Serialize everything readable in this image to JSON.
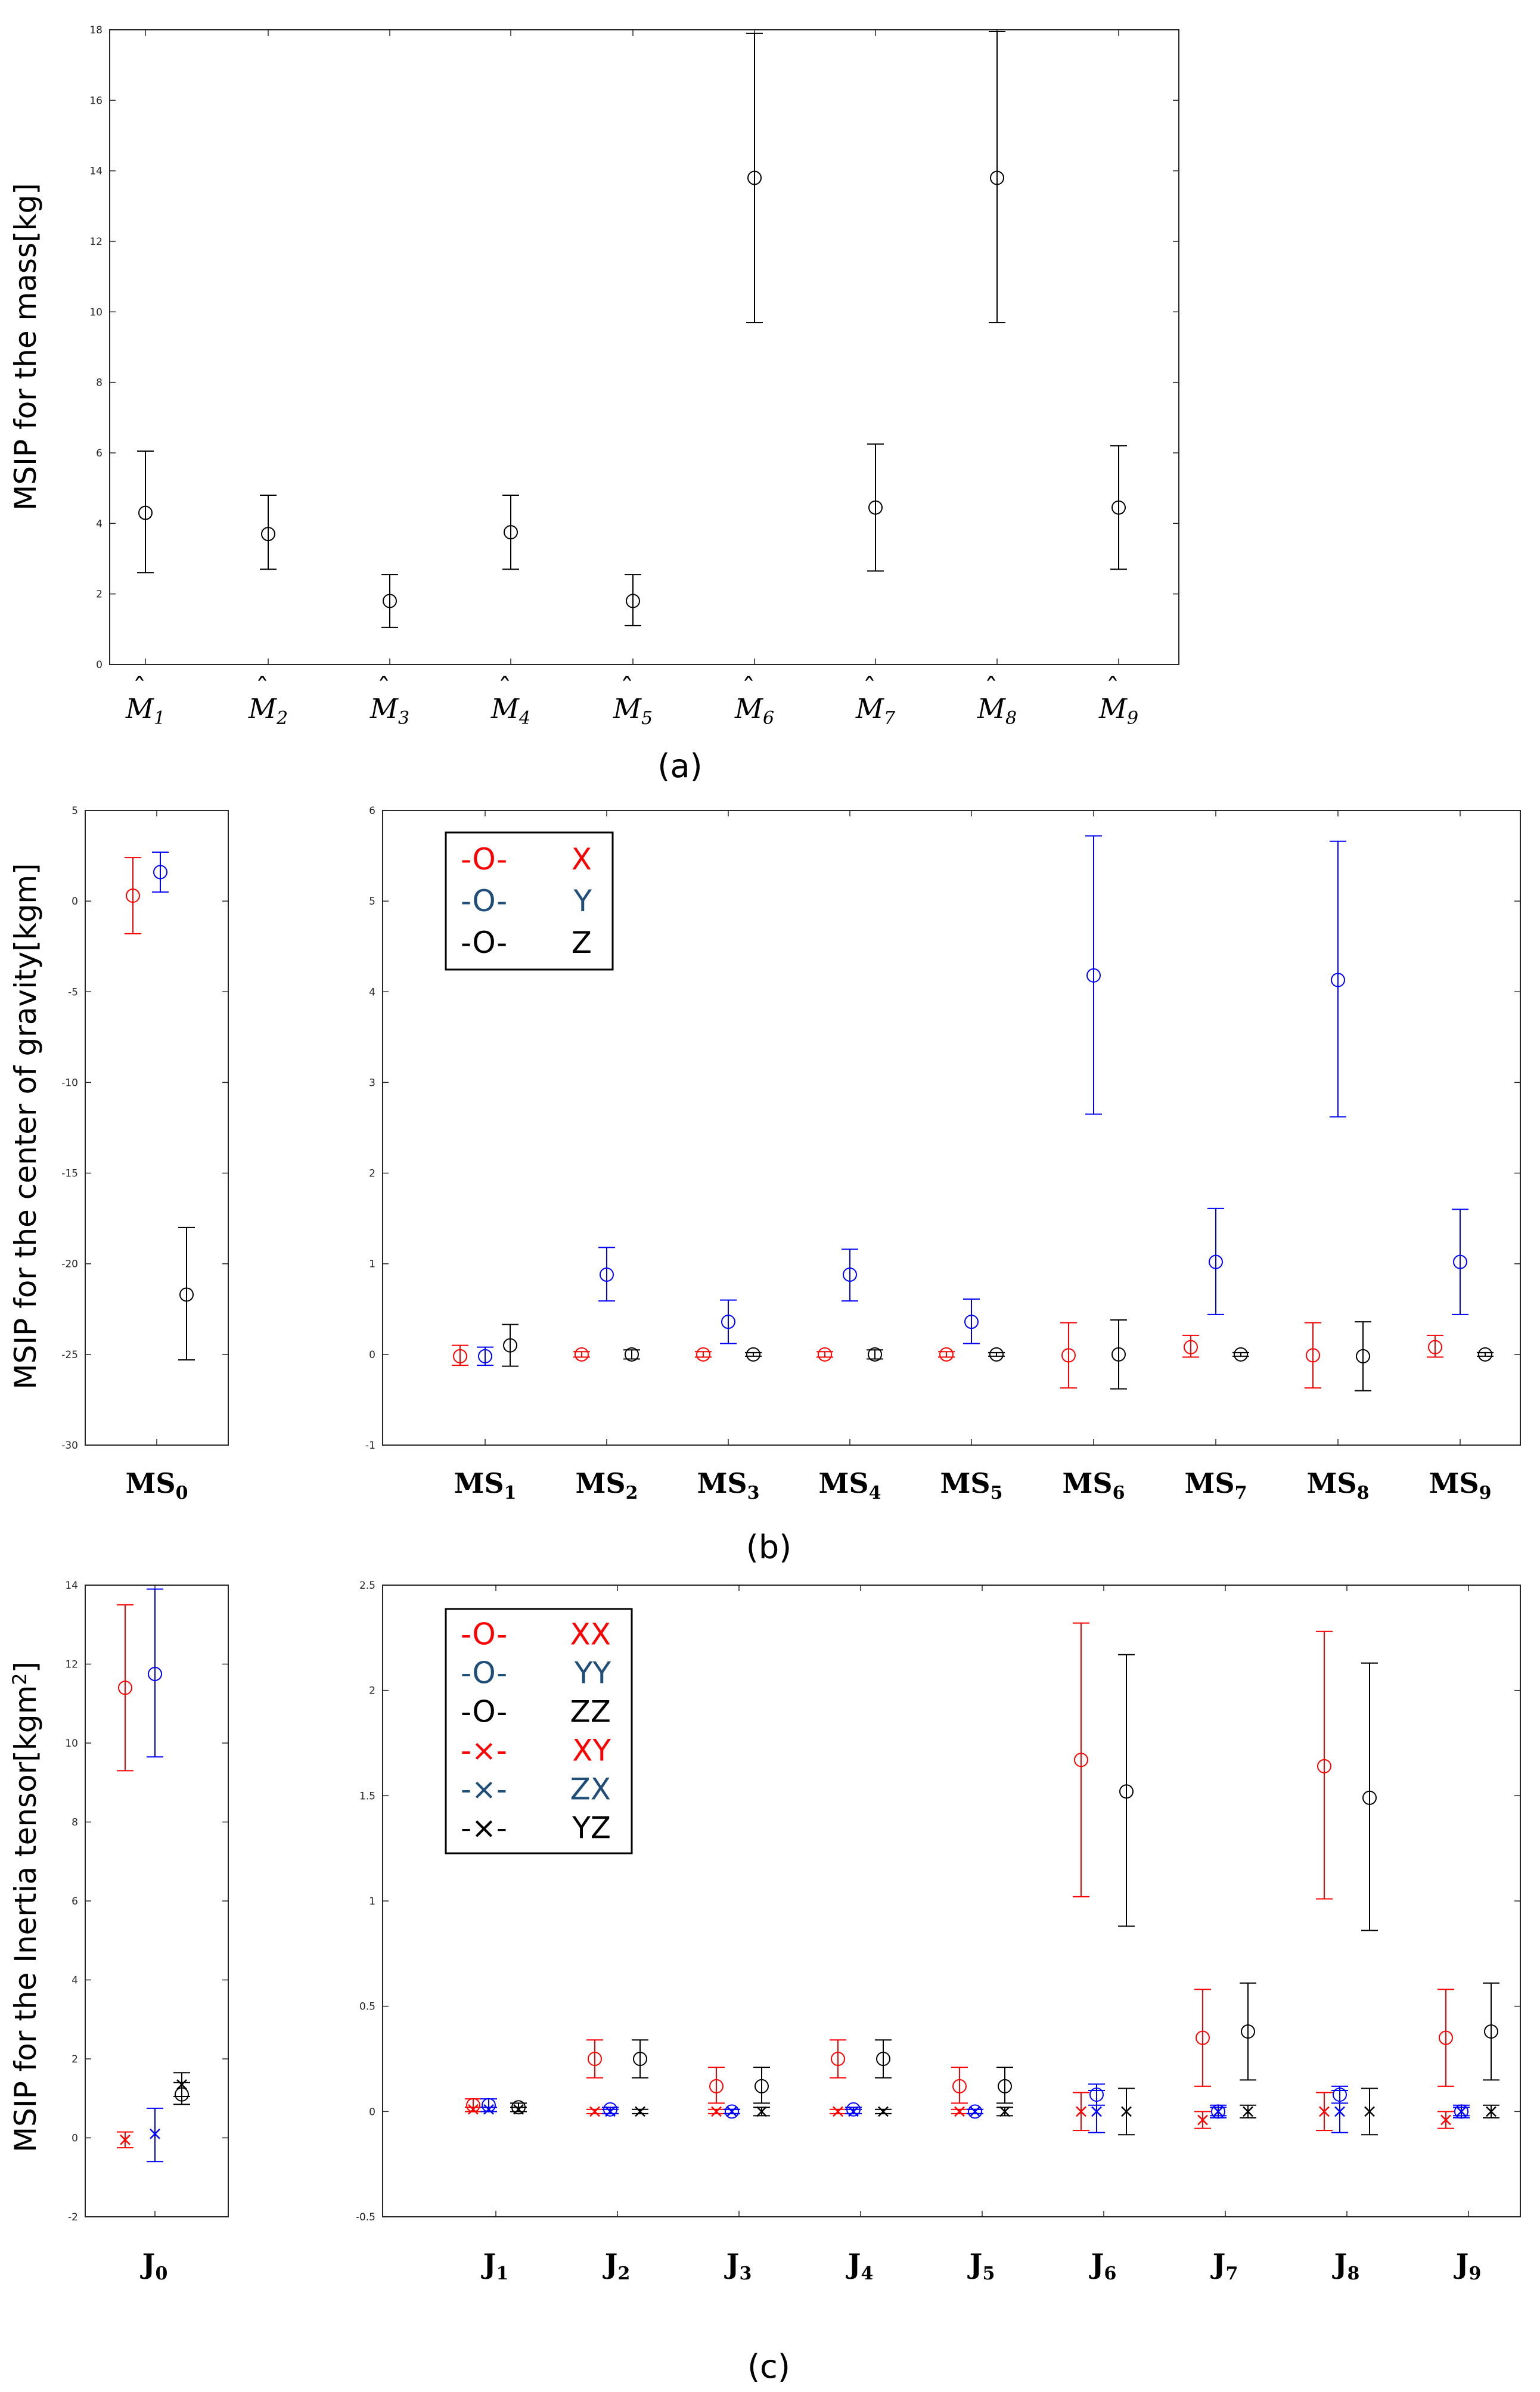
{
  "colors": {
    "X": "#ff0000",
    "Y": "#0000ff",
    "Z": "#000000",
    "legend_Y": "#1f4e79"
  },
  "chart_data": [
    {
      "id": "mass",
      "type": "errorbar",
      "caption": "(a)",
      "ylabel": "MSIP for the mass[kg]",
      "ylim": [
        0,
        18
      ],
      "yticks": [
        "0",
        "2",
        "4",
        "6",
        "8",
        "10",
        "12",
        "14",
        "16",
        "18"
      ],
      "categories": [
        "M",
        "M",
        "M",
        "M",
        "M",
        "M",
        "M",
        "M",
        "M"
      ],
      "category_subscripts": [
        "1",
        "2",
        "3",
        "4",
        "5",
        "6",
        "7",
        "8",
        "9"
      ],
      "series": [
        {
          "name": "mass",
          "marker": "circle",
          "color": "#000000",
          "values": [
            4.3,
            3.7,
            1.8,
            3.75,
            1.8,
            13.8,
            4.45,
            13.8,
            4.45
          ],
          "lower": [
            2.6,
            2.7,
            1.05,
            2.7,
            1.1,
            9.7,
            2.65,
            9.7,
            2.7
          ],
          "upper": [
            6.05,
            4.8,
            2.55,
            4.8,
            2.55,
            17.9,
            6.25,
            17.95,
            6.2
          ]
        }
      ]
    },
    {
      "id": "ms0",
      "type": "errorbar",
      "caption": "",
      "ylabel": "MSIP for the center of gravity[kgm]",
      "ylim": [
        -30,
        5
      ],
      "yticks": [
        "-30",
        "-25",
        "-20",
        "-15",
        "-10",
        "-5",
        "0",
        "5"
      ],
      "categories": [
        "MS"
      ],
      "category_subscripts": [
        "0"
      ],
      "series": [
        {
          "name": "X",
          "marker": "circle",
          "color": "#ff0000",
          "values": [
            0.3
          ],
          "lower": [
            -1.8
          ],
          "upper": [
            2.4
          ]
        },
        {
          "name": "Y",
          "marker": "circle",
          "color": "#0000ff",
          "values": [
            1.6
          ],
          "lower": [
            0.5
          ],
          "upper": [
            2.7
          ]
        },
        {
          "name": "Z",
          "marker": "circle",
          "color": "#000000",
          "values": [
            -21.7
          ],
          "lower": [
            -25.3
          ],
          "upper": [
            -18.0
          ]
        }
      ]
    },
    {
      "id": "ms19",
      "type": "errorbar",
      "caption": "(b)",
      "ylim": [
        -1,
        6
      ],
      "yticks": [
        "-1",
        "0",
        "1",
        "2",
        "3",
        "4",
        "5",
        "6"
      ],
      "categories": [
        "MS",
        "MS",
        "MS",
        "MS",
        "MS",
        "MS",
        "MS",
        "MS",
        "MS"
      ],
      "category_subscripts": [
        "1",
        "2",
        "3",
        "4",
        "5",
        "6",
        "7",
        "8",
        "9"
      ],
      "legend": {
        "position": "top-left",
        "items": [
          "X",
          "Y",
          "Z"
        ],
        "marker_symbols": [
          "-O-",
          "-O-",
          "-O-"
        ]
      },
      "series": [
        {
          "name": "X",
          "marker": "circle",
          "color": "#ff0000",
          "values": [
            -0.02,
            0,
            0,
            0,
            0,
            -0.01,
            0.08,
            -0.01,
            0.08
          ],
          "lower": [
            -0.12,
            -0.03,
            -0.03,
            -0.03,
            -0.03,
            -0.37,
            -0.03,
            -0.37,
            -0.03
          ],
          "upper": [
            0.1,
            0.03,
            0.03,
            0.03,
            0.03,
            0.35,
            0.21,
            0.35,
            0.21
          ]
        },
        {
          "name": "Y",
          "marker": "circle",
          "color": "#0000ff",
          "values": [
            -0.02,
            0.88,
            0.36,
            0.88,
            0.36,
            4.18,
            1.02,
            4.13,
            1.02
          ],
          "lower": [
            -0.12,
            0.59,
            0.12,
            0.59,
            0.12,
            2.65,
            0.44,
            2.62,
            0.44
          ],
          "upper": [
            0.08,
            1.18,
            0.6,
            1.16,
            0.61,
            5.72,
            1.61,
            5.66,
            1.6
          ]
        },
        {
          "name": "Z",
          "marker": "circle",
          "color": "#000000",
          "values": [
            0.1,
            0,
            0,
            0,
            0,
            0,
            0,
            -0.02,
            0
          ],
          "lower": [
            -0.13,
            -0.05,
            -0.02,
            -0.05,
            -0.02,
            -0.38,
            -0.02,
            -0.4,
            -0.02
          ],
          "upper": [
            0.33,
            0.05,
            0.02,
            0.05,
            0.02,
            0.38,
            0.02,
            0.36,
            0.02
          ]
        }
      ]
    },
    {
      "id": "j0",
      "type": "errorbar",
      "caption": "",
      "ylabel": "MSIP for the Inertia tensor[kgm",
      "ylabel_sup": "2",
      "ylabel_end": "]",
      "ylim": [
        -2,
        14
      ],
      "yticks": [
        "-2",
        "0",
        "2",
        "4",
        "6",
        "8",
        "10",
        "12",
        "14"
      ],
      "categories": [
        "J"
      ],
      "category_subscripts": [
        "0"
      ],
      "series": [
        {
          "name": "XX",
          "marker": "circle",
          "color": "#ff0000",
          "values": [
            11.4
          ],
          "lower": [
            9.3
          ],
          "upper": [
            13.5
          ]
        },
        {
          "name": "YY",
          "marker": "circle",
          "color": "#0000ff",
          "values": [
            11.75
          ],
          "lower": [
            9.65
          ],
          "upper": [
            13.9
          ]
        },
        {
          "name": "ZZ",
          "marker": "circle",
          "color": "#000000",
          "values": [
            1.1
          ],
          "lower": [
            0.85
          ],
          "upper": [
            1.4
          ]
        },
        {
          "name": "XY",
          "marker": "cross",
          "color": "#ff0000",
          "values": [
            -0.05
          ],
          "lower": [
            -0.25
          ],
          "upper": [
            0.15
          ]
        },
        {
          "name": "ZX",
          "marker": "cross",
          "color": "#0000ff",
          "values": [
            0.1
          ],
          "lower": [
            -0.6
          ],
          "upper": [
            0.75
          ]
        },
        {
          "name": "YZ",
          "marker": "cross",
          "color": "#000000",
          "values": [
            1.35
          ],
          "lower": [
            1.05
          ],
          "upper": [
            1.65
          ]
        }
      ]
    },
    {
      "id": "j19",
      "type": "errorbar",
      "caption": "(c)",
      "ylim": [
        -0.5,
        2.5
      ],
      "yticks": [
        "-0.5",
        "0",
        "0.5",
        "1",
        "1.5",
        "2",
        "2.5"
      ],
      "categories": [
        "J",
        "J",
        "J",
        "J",
        "J",
        "J",
        "J",
        "J",
        "J"
      ],
      "category_subscripts": [
        "1",
        "2",
        "3",
        "4",
        "5",
        "6",
        "7",
        "8",
        "9"
      ],
      "legend": {
        "position": "top-left",
        "items": [
          "XX",
          "YY",
          "ZZ",
          "XY",
          "ZX",
          "YZ"
        ],
        "marker_symbols": [
          "-O-",
          "-O-",
          "-O-",
          "-×-",
          "-×-",
          "-×-"
        ]
      },
      "series": [
        {
          "name": "XX",
          "marker": "circle",
          "color": "#ff0000",
          "values": [
            0.03,
            0.25,
            0.12,
            0.25,
            0.12,
            1.67,
            0.35,
            1.64,
            0.35
          ],
          "lower": [
            0,
            0.16,
            0.04,
            0.16,
            0.04,
            1.02,
            0.12,
            1.01,
            0.12
          ],
          "upper": [
            0.06,
            0.34,
            0.21,
            0.34,
            0.21,
            2.32,
            0.58,
            2.28,
            0.58
          ]
        },
        {
          "name": "YY",
          "marker": "circle",
          "color": "#0000ff",
          "values": [
            0.03,
            0.01,
            0,
            0.01,
            0,
            0.08,
            0,
            0.08,
            0
          ],
          "lower": [
            0,
            -0.01,
            -0.01,
            -0.01,
            -0.01,
            0.03,
            -0.02,
            0.04,
            -0.02
          ],
          "upper": [
            0.06,
            0.02,
            0.01,
            0.02,
            0.01,
            0.13,
            0.02,
            0.12,
            0.02
          ]
        },
        {
          "name": "ZZ",
          "marker": "circle",
          "color": "#000000",
          "values": [
            0.02,
            0.25,
            0.12,
            0.25,
            0.12,
            1.52,
            0.38,
            1.49,
            0.38
          ],
          "lower": [
            0,
            0.16,
            0.04,
            0.16,
            0.04,
            0.88,
            0.15,
            0.86,
            0.15
          ],
          "upper": [
            0.04,
            0.34,
            0.21,
            0.34,
            0.21,
            2.17,
            0.61,
            2.13,
            0.61
          ]
        },
        {
          "name": "XY",
          "marker": "cross",
          "color": "#ff0000",
          "values": [
            0.01,
            0,
            0,
            0,
            0,
            0,
            -0.04,
            0,
            -0.04
          ],
          "lower": [
            0,
            -0.01,
            -0.01,
            -0.01,
            -0.01,
            -0.09,
            -0.08,
            -0.09,
            -0.08
          ],
          "upper": [
            0.02,
            0.01,
            0.01,
            0.01,
            0.01,
            0.09,
            0,
            0.09,
            0
          ]
        },
        {
          "name": "ZX",
          "marker": "cross",
          "color": "#0000ff",
          "values": [
            0.01,
            0,
            0,
            0,
            0,
            0,
            0,
            0,
            0
          ],
          "lower": [
            0,
            -0.01,
            -0.01,
            -0.01,
            -0.01,
            -0.1,
            -0.03,
            -0.1,
            -0.03
          ],
          "upper": [
            0.02,
            0.01,
            0.01,
            0.01,
            0.01,
            0.1,
            0.03,
            0.1,
            0.03
          ]
        },
        {
          "name": "YZ",
          "marker": "cross",
          "color": "#000000",
          "values": [
            0.01,
            0,
            0,
            0,
            0,
            0,
            0,
            0,
            0
          ],
          "lower": [
            0,
            -0.01,
            -0.02,
            -0.01,
            -0.02,
            -0.11,
            -0.03,
            -0.11,
            -0.03
          ],
          "upper": [
            0.02,
            0.01,
            0.02,
            0.01,
            0.02,
            0.11,
            0.03,
            0.11,
            0.03
          ]
        }
      ]
    }
  ]
}
